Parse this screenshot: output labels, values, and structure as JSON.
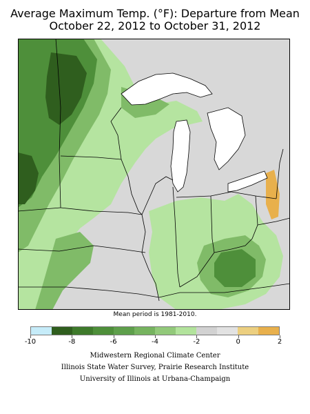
{
  "title": "Average Maximum Temp. (°F): Departure from Mean",
  "subtitle": "October 22, 2012 to October 31, 2012",
  "period_note": "Mean period is 1981-2010.",
  "legend": {
    "colors": [
      "#c6ecf9",
      "#2f5e1e",
      "#3e7a2b",
      "#4e8f3a",
      "#5e9f4b",
      "#76b35f",
      "#92c97a",
      "#b2e39c",
      "#d2d2d2",
      "#e2e2e2",
      "#eccf80",
      "#e8b04c"
    ],
    "tick_labels": [
      "-10",
      "-8",
      "-6",
      "-4",
      "-2",
      "0",
      "2"
    ]
  },
  "credits": [
    "Midwestern Regional Climate Center",
    "Illinois State Water Survey, Prairie Research Institute",
    "University of Illinois at Urbana-Champaign"
  ],
  "map_colors": {
    "background": "#d8d8d8",
    "water": "#ffffff",
    "boundary": "#000000",
    "light_green": "#b5e4a0",
    "mid_green": "#80bb68",
    "dark_green": "#4e8f3a",
    "darkest_green": "#2f5e1e",
    "warm": "#e8b04c"
  }
}
